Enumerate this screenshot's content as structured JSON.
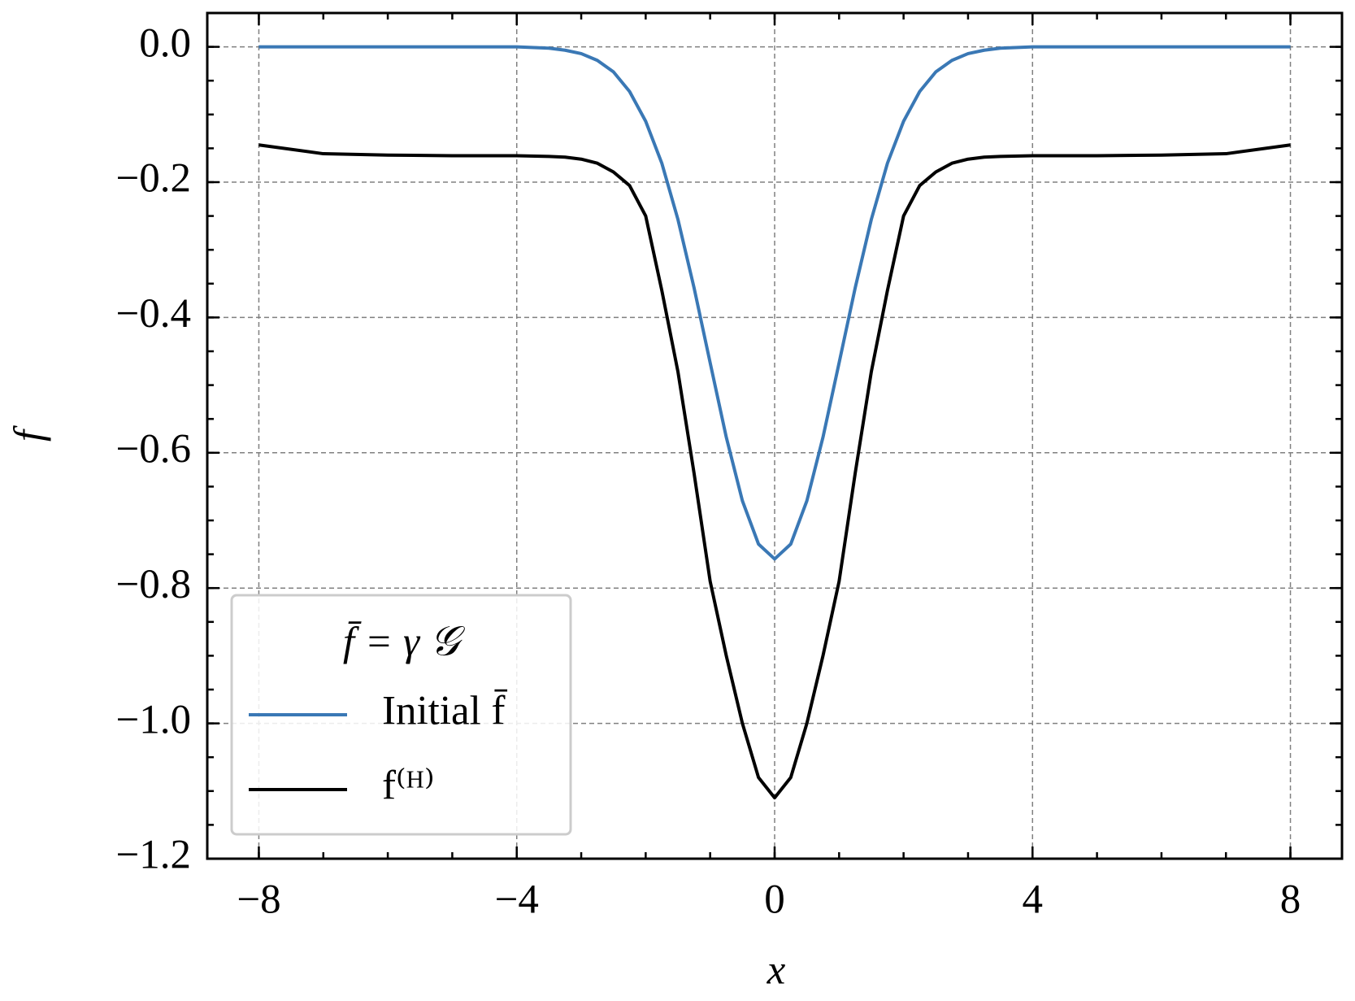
{
  "chart_data": {
    "type": "line",
    "xlabel": "x",
    "ylabel": "f",
    "x": [
      -8,
      -7,
      -6,
      -5,
      -4,
      -3.5,
      -3.25,
      -3,
      -2.75,
      -2.5,
      -2.25,
      -2,
      -1.75,
      -1.5,
      -1.25,
      -1,
      -0.75,
      -0.5,
      -0.25,
      0,
      0.25,
      0.5,
      0.75,
      1,
      1.25,
      1.5,
      1.75,
      2,
      2.25,
      2.5,
      2.75,
      3,
      3.25,
      3.5,
      4,
      5,
      6,
      7,
      8
    ],
    "series": [
      {
        "name": "Initial f̄",
        "color": "#3a78b5",
        "values": [
          0,
          0,
          0,
          0,
          0,
          -0.002,
          -0.005,
          -0.01,
          -0.02,
          -0.037,
          -0.066,
          -0.11,
          -0.172,
          -0.255,
          -0.356,
          -0.467,
          -0.577,
          -0.671,
          -0.735,
          -0.757,
          -0.735,
          -0.671,
          -0.577,
          -0.467,
          -0.356,
          -0.255,
          -0.172,
          -0.11,
          -0.066,
          -0.037,
          -0.02,
          -0.01,
          -0.005,
          -0.002,
          0,
          0,
          0,
          0,
          0
        ]
      },
      {
        "name": "f⁽ᴴ⁾",
        "color": "#000000",
        "values": [
          -0.145,
          -0.158,
          -0.16,
          -0.161,
          -0.161,
          -0.162,
          -0.163,
          -0.166,
          -0.172,
          -0.185,
          -0.205,
          -0.25,
          -0.36,
          -0.48,
          -0.63,
          -0.79,
          -0.9,
          -1.0,
          -1.08,
          -1.11,
          -1.08,
          -1.0,
          -0.9,
          -0.79,
          -0.63,
          -0.48,
          -0.36,
          -0.25,
          -0.205,
          -0.185,
          -0.172,
          -0.166,
          -0.163,
          -0.162,
          -0.161,
          -0.161,
          -0.16,
          -0.158,
          -0.145
        ]
      }
    ],
    "legend_title": "f̄ = γ 𝒢",
    "legend": "lower left",
    "grid": true,
    "xlim": [
      -8.8,
      8.8
    ],
    "ylim": [
      -1.2,
      0.05
    ],
    "xticks": [
      {
        "value": -8,
        "label": "−8"
      },
      {
        "value": -4,
        "label": "−4"
      },
      0,
      4,
      8
    ],
    "yticks": [
      {
        "value": 0,
        "label": "0.0"
      },
      {
        "value": -0.2,
        "label": "−0.2"
      },
      {
        "value": -0.4,
        "label": "−0.4"
      },
      {
        "value": -0.6,
        "label": "−0.6"
      },
      {
        "value": -0.8,
        "label": "−0.8"
      },
      {
        "value": -1.0,
        "label": "−1.0"
      },
      {
        "value": -1.2,
        "label": "−1.2"
      }
    ],
    "xticks_minor": [
      -8,
      -7,
      -6,
      -5,
      -4,
      -3,
      -2,
      -1,
      0,
      1,
      2,
      3,
      4,
      5,
      6,
      7,
      8
    ],
    "yticks_minor": [
      0.05,
      0,
      -0.05,
      -0.1,
      -0.15,
      -0.2,
      -0.25,
      -0.3,
      -0.35,
      -0.4,
      -0.45,
      -0.5,
      -0.55,
      -0.6,
      -0.65,
      -0.7,
      -0.75,
      -0.8,
      -0.85,
      -0.9,
      -0.95,
      -1.0,
      -1.05,
      -1.1,
      -1.15,
      -1.2
    ]
  }
}
